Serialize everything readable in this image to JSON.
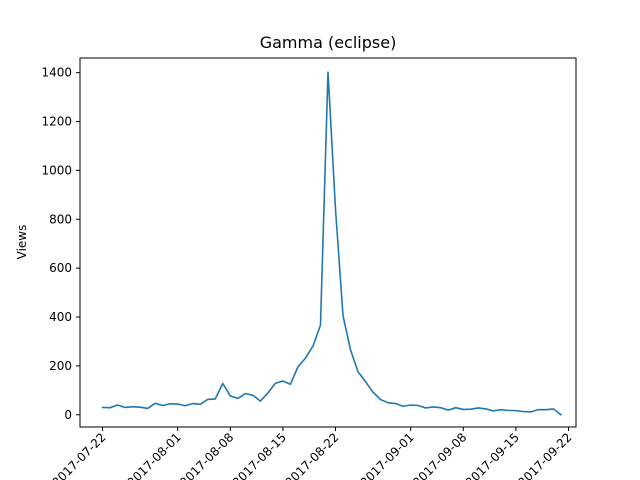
{
  "chart_data": {
    "type": "line",
    "title": "Gamma (eclipse)",
    "xlabel": "",
    "ylabel": "Views",
    "ylim": [
      -50,
      1460
    ],
    "xlim": [
      "2017-07-19",
      "2017-09-23"
    ],
    "yticks": [
      0,
      200,
      400,
      600,
      800,
      1000,
      1200,
      1400
    ],
    "xticks": [
      "2017-07-22",
      "2017-08-01",
      "2017-08-08",
      "2017-08-15",
      "2017-08-22",
      "2017-09-01",
      "2017-09-08",
      "2017-09-15",
      "2017-09-22"
    ],
    "grid": false,
    "series": [
      {
        "name": "Gamma (eclipse)",
        "color": "#1f77b4",
        "x": [
          "2017-07-22",
          "2017-07-23",
          "2017-07-24",
          "2017-07-25",
          "2017-07-26",
          "2017-07-27",
          "2017-07-28",
          "2017-07-29",
          "2017-07-30",
          "2017-07-31",
          "2017-08-01",
          "2017-08-02",
          "2017-08-03",
          "2017-08-04",
          "2017-08-05",
          "2017-08-06",
          "2017-08-07",
          "2017-08-08",
          "2017-08-09",
          "2017-08-10",
          "2017-08-11",
          "2017-08-12",
          "2017-08-13",
          "2017-08-14",
          "2017-08-15",
          "2017-08-16",
          "2017-08-17",
          "2017-08-18",
          "2017-08-19",
          "2017-08-20",
          "2017-08-21",
          "2017-08-22",
          "2017-08-23",
          "2017-08-24",
          "2017-08-25",
          "2017-08-26",
          "2017-08-27",
          "2017-08-28",
          "2017-08-29",
          "2017-08-30",
          "2017-08-31",
          "2017-09-01",
          "2017-09-02",
          "2017-09-03",
          "2017-09-04",
          "2017-09-05",
          "2017-09-06",
          "2017-09-07",
          "2017-09-08",
          "2017-09-09",
          "2017-09-10",
          "2017-09-11",
          "2017-09-12",
          "2017-09-13",
          "2017-09-14",
          "2017-09-15",
          "2017-09-16",
          "2017-09-17",
          "2017-09-18",
          "2017-09-19",
          "2017-09-20",
          "2017-09-21"
        ],
        "values": [
          30,
          29,
          40,
          30,
          33,
          31,
          26,
          47,
          38,
          45,
          44,
          37,
          46,
          43,
          63,
          65,
          128,
          77,
          67,
          87,
          80,
          56,
          89,
          129,
          138,
          125,
          196,
          232,
          281,
          367,
          1402,
          840,
          405,
          265,
          176,
          135,
          92,
          62,
          49,
          46,
          35,
          40,
          38,
          28,
          32,
          29,
          19,
          29,
          22,
          23,
          28,
          24,
          16,
          21,
          18,
          17,
          13,
          12,
          21,
          21,
          24,
          0
        ]
      }
    ]
  }
}
